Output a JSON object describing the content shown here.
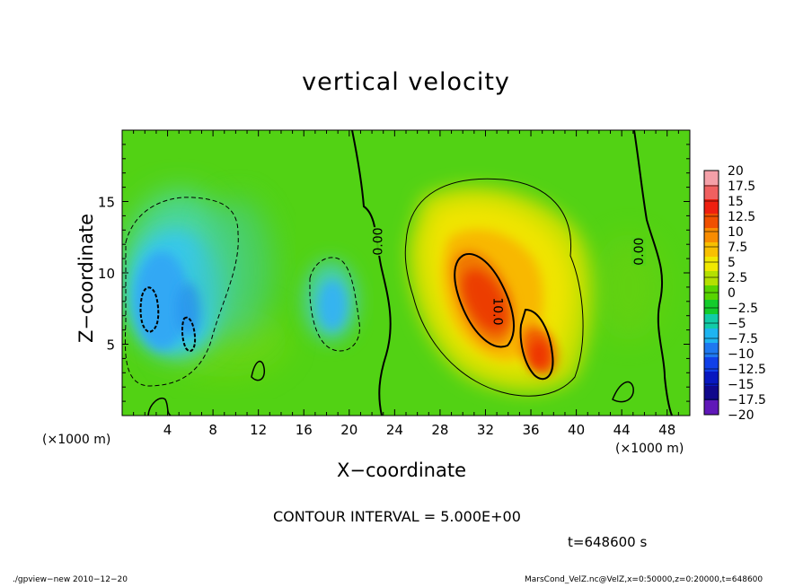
{
  "chart_data": {
    "type": "heatmap",
    "title": "vertical velocity",
    "xlabel": "X−coordinate",
    "ylabel": "Z−coordinate",
    "x_unit_label": "(×1000 m)",
    "y_unit_label": "(×1000 m)",
    "xlim": [
      0,
      50
    ],
    "ylim": [
      0,
      20
    ],
    "x_ticks": [
      4,
      8,
      12,
      16,
      20,
      24,
      28,
      32,
      36,
      40,
      44,
      48
    ],
    "x_tick_labels": [
      "4",
      "8",
      "12",
      "16",
      "20",
      "24",
      "28",
      "32",
      "36",
      "40",
      "44",
      "48"
    ],
    "y_ticks": [
      5,
      10,
      15
    ],
    "y_tick_labels": [
      "5",
      "10",
      "15"
    ],
    "contour_labels": [
      {
        "text": "0.00",
        "x": 22.5,
        "y": 12.2
      },
      {
        "text": "10.0",
        "x": 33.1,
        "y": 7.3
      },
      {
        "text": "0.00",
        "x": 45.5,
        "y": 11.5
      }
    ],
    "colorbar": {
      "levels": [
        20,
        17.5,
        15,
        12.5,
        10,
        7.5,
        5,
        2.5,
        0,
        -2.5,
        -5,
        -7.5,
        -10,
        -12.5,
        -15,
        -17.5,
        -20
      ],
      "labels": [
        "20",
        "17.5",
        "15",
        "12.5",
        "10",
        "7.5",
        "5",
        "2.5",
        "0",
        "−2.5",
        "−5",
        "−7.5",
        "−10",
        "−12.5",
        "−15",
        "−17.5",
        "−20"
      ],
      "colors": [
        "#f4a0a8",
        "#f06060",
        "#ee2010",
        "#f05000",
        "#f88c00",
        "#f8c000",
        "#f0e800",
        "#b4e000",
        "#58d400",
        "#14cc2c",
        "#12cca8",
        "#1eb4f0",
        "#1e78f0",
        "#1040e8",
        "#0818c0",
        "#10088c",
        "#6018b8"
      ]
    },
    "contour_interval_text": "CONTOUR INTERVAL = 5.000E+00",
    "time_text": "t=648600 s"
  },
  "footer": {
    "left": "./gpview−new   2010−12−20",
    "right": "MarsCond_VelZ.nc@VelZ,x=0:50000,z=0:20000,t=648600"
  }
}
